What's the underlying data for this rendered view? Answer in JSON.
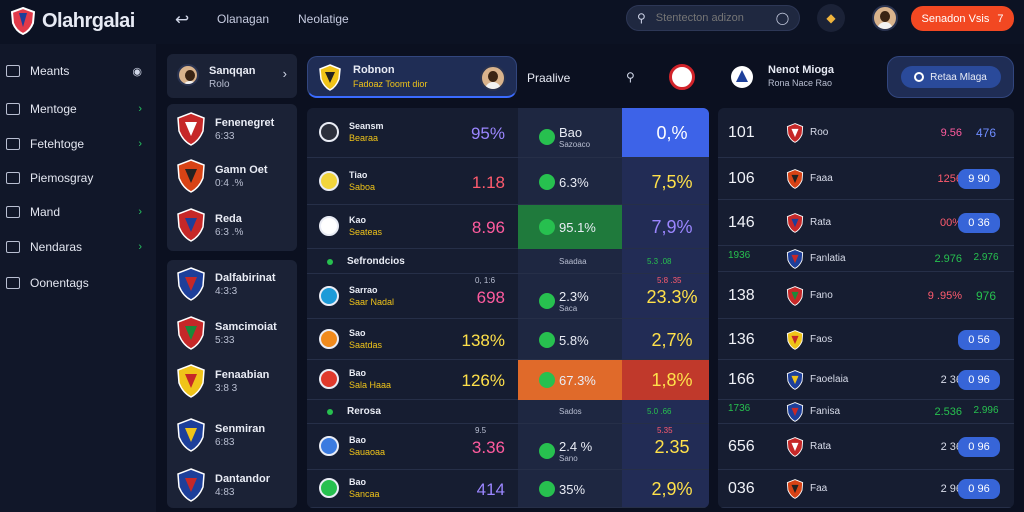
{
  "app": {
    "title": "Olahrgalai",
    "cta_label": "Senadon Vsis",
    "cta_count": "7"
  },
  "topnav": [
    "Olanagan",
    "Neolatige"
  ],
  "search": {
    "placeholder": "Stentecton adizon"
  },
  "sidebar": {
    "items": [
      {
        "label": "Meants",
        "icon": "signal-icon",
        "chevron": false
      },
      {
        "label": "Mentoge",
        "icon": "monitor-icon",
        "chevron": true
      },
      {
        "label": "Fetehtoge",
        "icon": "window-icon",
        "chevron": true
      },
      {
        "label": "Piemosgray",
        "icon": "gallery-icon",
        "chevron": false
      },
      {
        "label": "Mand",
        "icon": "book-icon",
        "chevron": true
      },
      {
        "label": "Nendaras",
        "icon": "tag-icon",
        "chevron": true
      },
      {
        "label": "Oonentags",
        "icon": "globe-icon",
        "chevron": false
      }
    ]
  },
  "profile_card": {
    "name": "Sanqqan",
    "sub": "Rolo"
  },
  "teams_top": [
    {
      "name": "Fenenegret",
      "sub": "6:33"
    },
    {
      "name": "Gamn Oet",
      "sub": "0:4 .%"
    },
    {
      "name": "Reda",
      "sub": "6:3 .%"
    }
  ],
  "teams_bottom": [
    {
      "name": "Dalfabirinat",
      "sub": "4:3:3"
    },
    {
      "name": "Samcimoiat",
      "sub": "5:33"
    },
    {
      "name": "Fenaabian",
      "sub": "3:8 3"
    },
    {
      "name": "Senmiran",
      "sub": "6:83"
    },
    {
      "name": "Dantandor",
      "sub": "4:83"
    }
  ],
  "match_header": {
    "title": "Robnon",
    "sub": "Fadoaz Toomt dior",
    "center": "Praalive"
  },
  "middle_rows": [
    {
      "type": "match",
      "name": "Seansm",
      "sub": "Bearaa",
      "a": "95%",
      "a_color": "#9b86ff",
      "b": "Bao",
      "b_sub": "Sazoaco",
      "c": "0,%",
      "c_color": "#ffffff",
      "ball": "#2b2f3c"
    },
    {
      "type": "match",
      "name": "Tiao",
      "sub": "Saboa",
      "a": "1.18",
      "a_color": "#ff5b6e",
      "b": "6.3%",
      "c": "7,5%",
      "c_color": "#ffe14a",
      "ball": "#f2d53c"
    },
    {
      "type": "match",
      "name": "Kao",
      "sub": "Seateas",
      "a": "8.96",
      "a_color": "#ff5b9e",
      "b": "95.1%",
      "c": "7,9%",
      "c_color": "#9b86ff",
      "ball": "#ffffff",
      "hl_b": "#1f7a3c"
    },
    {
      "type": "section",
      "name": "Sefrondcios",
      "b": "Saadaa",
      "c": "5.3 .08"
    },
    {
      "type": "match",
      "name": "Sarrao",
      "sub": "Saar Nadal",
      "a": "698",
      "a_color": "#ff5b9e",
      "a_sub": "0, 1:6",
      "b": "2.3%",
      "b_sub": "Saca",
      "c": "23.3%",
      "c_color": "#ffe14a",
      "c_sub": "5:8 .35",
      "ball": "#1d9bd8"
    },
    {
      "type": "match",
      "name": "Sao",
      "sub": "Saatdas",
      "a": "138%",
      "a_color": "#ffe14a",
      "b": "5.8%",
      "c": "2,7%",
      "c_color": "#ffe14a",
      "ball": "#f08a1c"
    },
    {
      "type": "match",
      "name": "Bao",
      "sub": "Sala Haaa",
      "a": "126%",
      "a_color": "#ffe14a",
      "b": "67.3%",
      "c": "1,8%",
      "c_color": "#ffe14a",
      "ball": "#e03a2c",
      "hl_b": "#e06a2a",
      "hl_c": "#c0392b"
    },
    {
      "type": "section",
      "name": "Rerosa",
      "b": "Sados",
      "c": "5.0 .66"
    },
    {
      "type": "match",
      "name": "Bao",
      "sub": "Sauaoaa",
      "a": "3.36",
      "a_color": "#ff5b9e",
      "a_sub": "9.5",
      "b": "2.4 %",
      "b_sub": "Sano",
      "c": "2.35",
      "c_color": "#ffe14a",
      "c_sub": "5.35",
      "ball": "#3b7be0"
    },
    {
      "type": "match",
      "name": "Bao",
      "sub": "Sancaa",
      "a": "414",
      "a_color": "#9b86ff",
      "b": "35%",
      "c": "2,9%",
      "c_color": "#ffe14a",
      "ball": "#27c04f"
    }
  ],
  "right_header": {
    "title": "Nenot Mioga",
    "sub": "Rona Nace Rao",
    "pill": "Retaa Mlaga"
  },
  "right_rows": [
    {
      "num": "101",
      "name": "Roo",
      "mid": "9.56",
      "mid_color": "#ff5b9e",
      "end": "476",
      "end_style": "text",
      "end_color": "#6e8cff"
    },
    {
      "num": "106",
      "name": "Faaa",
      "mid": "1256",
      "mid_color": "#ff5b6e",
      "end": "9 90",
      "end_style": "button"
    },
    {
      "num": "146",
      "name": "Rata",
      "mid": "00%",
      "mid_color": "#ff5b6e",
      "end": "0 36",
      "end_style": "button"
    },
    {
      "num": "1936",
      "name": "Fanlatia",
      "mid": "2.976",
      "mid_color": "#27c04f",
      "end": "2.976",
      "end_style": "text",
      "end_color": "#27c04f",
      "small": true
    },
    {
      "num": "138",
      "name": "Fano",
      "mid": "9 .95%",
      "mid_color": "#ff5b6e",
      "end": "976",
      "end_style": "text",
      "end_color": "#27c04f"
    },
    {
      "num": "136",
      "name": "Faos",
      "mid": "",
      "mid_color": "#d8dcea",
      "end": "0 56",
      "end_style": "button"
    },
    {
      "num": "166",
      "name": "Faoelaia",
      "mid": "2 36",
      "mid_color": "#d8dcea",
      "end": "0 96",
      "end_style": "button"
    },
    {
      "num": "1736",
      "name": "Fanisa",
      "mid": "2.536",
      "mid_color": "#27c04f",
      "end": "2.996",
      "end_style": "text",
      "end_color": "#27c04f",
      "small": true
    },
    {
      "num": "656",
      "name": "Rata",
      "mid": "2 36",
      "mid_color": "#d8dcea",
      "end": "0 96",
      "end_style": "button"
    },
    {
      "num": "036",
      "name": "Faa",
      "mid": "2 96",
      "mid_color": "#d8dcea",
      "end": "0 96",
      "end_style": "button"
    }
  ]
}
